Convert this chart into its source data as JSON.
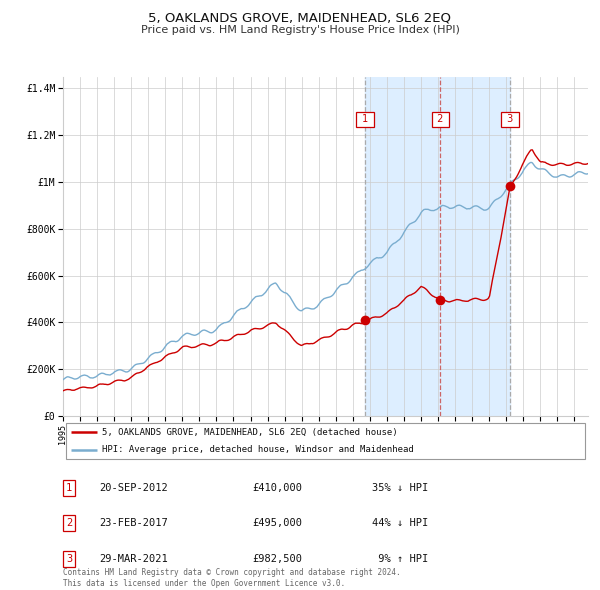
{
  "title": "5, OAKLANDS GROVE, MAIDENHEAD, SL6 2EQ",
  "subtitle": "Price paid vs. HM Land Registry's House Price Index (HPI)",
  "footer": "Contains HM Land Registry data © Crown copyright and database right 2024.\nThis data is licensed under the Open Government Licence v3.0.",
  "legend_line1": "5, OAKLANDS GROVE, MAIDENHEAD, SL6 2EQ (detached house)",
  "legend_line2": "HPI: Average price, detached house, Windsor and Maidenhead",
  "transactions": [
    {
      "num": 1,
      "date": "20-SEP-2012",
      "price": 410000,
      "pct": "35%",
      "dir": "↓",
      "year": 2012.72
    },
    {
      "num": 2,
      "date": "23-FEB-2017",
      "price": 495000,
      "pct": "44%",
      "dir": "↓",
      "year": 2017.14
    },
    {
      "num": 3,
      "date": "29-MAR-2021",
      "price": 982500,
      "pct": "9%",
      "dir": "↑",
      "year": 2021.23
    }
  ],
  "red_color": "#cc0000",
  "blue_color": "#7aadcf",
  "background_color": "#ffffff",
  "shade_color": "#ddeeff",
  "grid_color": "#cccccc",
  "vline_colors": [
    "#aaaaaa",
    "#cc6666",
    "#aaaaaa"
  ],
  "ylim": [
    0,
    1450000
  ],
  "xlim_start": 1995.0,
  "xlim_end": 2025.8
}
